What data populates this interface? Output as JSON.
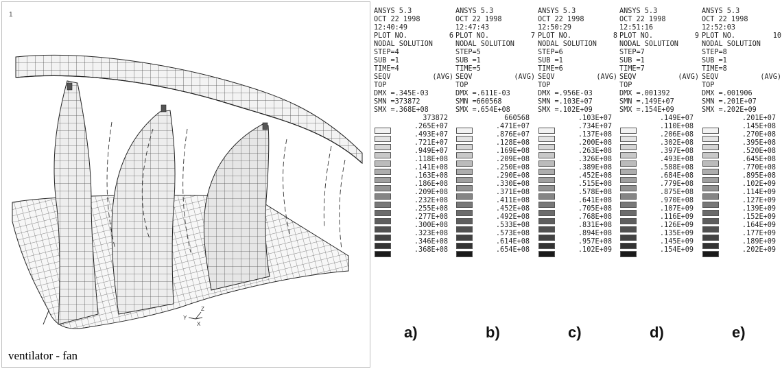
{
  "viewport": {
    "plot_number": "1",
    "caption": "ventilator - fan",
    "triad_labels": {
      "y": "Y",
      "z": "Z",
      "x": "X"
    }
  },
  "common": {
    "program": "ANSYS 5.3",
    "date": "OCT 22 1998",
    "plot_label": "PLOT NO.",
    "solution": "NODAL SOLUTION",
    "sub": "SUB =1",
    "seqv": "SEQV",
    "avg": "(AVG)",
    "top": "TOP"
  },
  "legend_colors": [
    "#ffffff",
    "#f2f2f2",
    "#e4e4e4",
    "#d6d6d6",
    "#c8c8c8",
    "#bbbbbb",
    "#adadad",
    "#a0a0a0",
    "#939393",
    "#858585",
    "#787878",
    "#6b6b6b",
    "#5e5e5e",
    "#505050",
    "#424242",
    "#333333",
    "#1a1a1a"
  ],
  "panels": [
    {
      "id": "a",
      "time": "12:40:49",
      "plot_no": "6",
      "step": "STEP=4",
      "time_label": "TIME=4",
      "dmx": "DMX =.345E-03",
      "smn": "SMN =373872",
      "smx": "SMX =.368E+08",
      "contours": [
        "373872",
        ".265E+07",
        ".493E+07",
        ".721E+07",
        ".949E+07",
        ".118E+08",
        ".141E+08",
        ".163E+08",
        ".186E+08",
        ".209E+08",
        ".232E+08",
        ".255E+08",
        ".277E+08",
        ".300E+08",
        ".323E+08",
        ".346E+08",
        ".368E+08"
      ],
      "label": "a)"
    },
    {
      "id": "b",
      "time": "12:47:43",
      "plot_no": "7",
      "step": "STEP=5",
      "time_label": "TIME=5",
      "dmx": "DMX =.611E-03",
      "smn": "SMN =660568",
      "smx": "SMX =.654E+08",
      "contours": [
        "660568",
        ".471E+07",
        ".876E+07",
        ".128E+08",
        ".169E+08",
        ".209E+08",
        ".250E+08",
        ".290E+08",
        ".330E+08",
        ".371E+08",
        ".411E+08",
        ".452E+08",
        ".492E+08",
        ".533E+08",
        ".573E+08",
        ".614E+08",
        ".654E+08"
      ],
      "label": "b)"
    },
    {
      "id": "c",
      "time": "12:50:29",
      "plot_no": "8",
      "step": "STEP=6",
      "time_label": "TIME=6",
      "dmx": "DMX =.956E-03",
      "smn": "SMN =.103E+07",
      "smx": "SMX =.102E+09",
      "contours": [
        ".103E+07",
        ".734E+07",
        ".137E+08",
        ".200E+08",
        ".263E+08",
        ".326E+08",
        ".389E+08",
        ".452E+08",
        ".515E+08",
        ".578E+08",
        ".641E+08",
        ".705E+08",
        ".768E+08",
        ".831E+08",
        ".894E+08",
        ".957E+08",
        ".102E+09"
      ],
      "label": "c)"
    },
    {
      "id": "d",
      "time": "12:51:16",
      "plot_no": "9",
      "step": "STEP=7",
      "time_label": "TIME=7",
      "dmx": "DMX =.001392",
      "smn": "SMN =.149E+07",
      "smx": "SMX =.154E+09",
      "contours": [
        ".149E+07",
        ".110E+08",
        ".206E+08",
        ".302E+08",
        ".397E+08",
        ".493E+08",
        ".588E+08",
        ".684E+08",
        ".779E+08",
        ".875E+08",
        ".970E+08",
        ".107E+09",
        ".116E+09",
        ".126E+09",
        ".135E+09",
        ".145E+09",
        ".154E+09"
      ],
      "label": "d)"
    },
    {
      "id": "e",
      "time": "12:52:03",
      "plot_no": "10",
      "step": "STEP=8",
      "time_label": "TIME=8",
      "dmx": "DMX =.001906",
      "smn": "SMN =.201E+07",
      "smx": "SMX =.202E+09",
      "contours": [
        ".201E+07",
        ".145E+08",
        ".270E+08",
        ".395E+08",
        ".520E+08",
        ".645E+08",
        ".770E+08",
        ".895E+08",
        ".102E+09",
        ".114E+09",
        ".127E+09",
        ".139E+09",
        ".152E+09",
        ".164E+09",
        ".177E+09",
        ".189E+09",
        ".202E+09"
      ],
      "label": "e)"
    }
  ]
}
